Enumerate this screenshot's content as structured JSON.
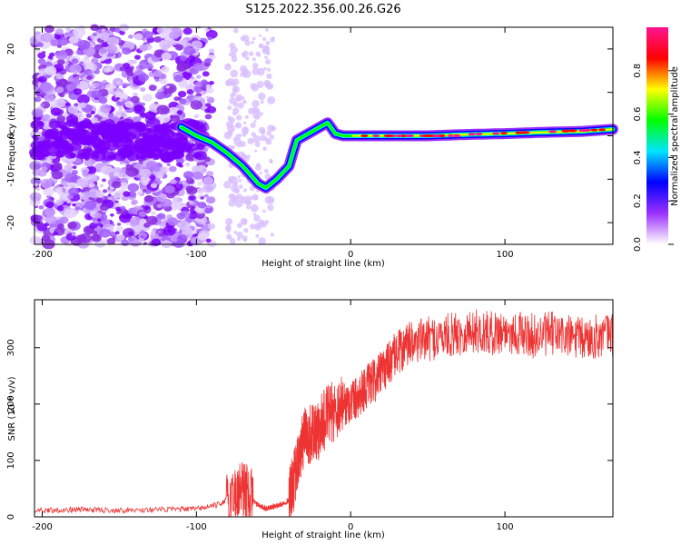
{
  "title": "S125.2022.356.00.26.G26",
  "chart_data": [
    {
      "type": "heatmap",
      "xlabel": "Height of straight line (km)",
      "ylabel": "Frequency (Hz)",
      "xlim": [
        -205,
        170
      ],
      "ylim": [
        -25,
        25
      ],
      "x_ticks": [
        -200,
        -100,
        0,
        100
      ],
      "y_ticks": [
        -20,
        -10,
        0,
        10,
        20
      ],
      "colorbar": {
        "label": "Normalized spectral amplitude",
        "range": [
          0,
          1
        ],
        "ticks": [
          "0.0",
          "0.2",
          "0.4",
          "0.6",
          "0.8"
        ],
        "colors": [
          "#ffffff",
          "#9b30ff",
          "#0000ff",
          "#00e5ff",
          "#00ff00",
          "#ffff00",
          "#ff0000",
          "#ff1493"
        ]
      },
      "ridge": {
        "x": [
          -110,
          -100,
          -90,
          -80,
          -70,
          -60,
          -55,
          -48,
          -40,
          -35,
          -30,
          -25,
          -20,
          -15,
          -10,
          -5,
          0,
          10,
          25,
          50,
          75,
          100,
          125,
          150,
          170
        ],
        "y": [
          2,
          0,
          -1.5,
          -4,
          -7,
          -11,
          -12,
          -10,
          -7,
          -1,
          0,
          1,
          2,
          3,
          0.5,
          0,
          0,
          0,
          0,
          0,
          0.3,
          0.5,
          0.8,
          1,
          1.5
        ]
      }
    },
    {
      "type": "line",
      "xlabel": "Height of straight line (km)",
      "ylabel": "SNR (10 * v/v)",
      "xlim": [
        -205,
        170
      ],
      "ylim": [
        0,
        385
      ],
      "x_ticks": [
        -200,
        -100,
        0,
        100
      ],
      "y_ticks": [
        0,
        100,
        200,
        300
      ],
      "series": [
        {
          "color": "#ee3333",
          "x": [
            -205,
            -190,
            -175,
            -160,
            -140,
            -120,
            -100,
            -85,
            -75,
            -70,
            -65,
            -60,
            -55,
            -50,
            -45,
            -40,
            -37,
            -33,
            -30,
            -25,
            -22,
            -20,
            -15,
            -10,
            -5,
            0,
            5,
            10,
            15,
            20,
            25,
            30,
            35,
            40,
            50,
            60,
            70,
            80,
            90,
            100,
            110,
            120,
            130,
            140,
            150,
            160,
            170
          ],
          "y": [
            12,
            12,
            13,
            12,
            12,
            13,
            14,
            22,
            40,
            50,
            35,
            20,
            15,
            18,
            22,
            30,
            60,
            110,
            140,
            150,
            140,
            160,
            180,
            190,
            200,
            205,
            215,
            230,
            240,
            255,
            275,
            290,
            300,
            310,
            315,
            320,
            325,
            330,
            325,
            330,
            325,
            320,
            325,
            320,
            315,
            320,
            325
          ]
        }
      ]
    }
  ]
}
